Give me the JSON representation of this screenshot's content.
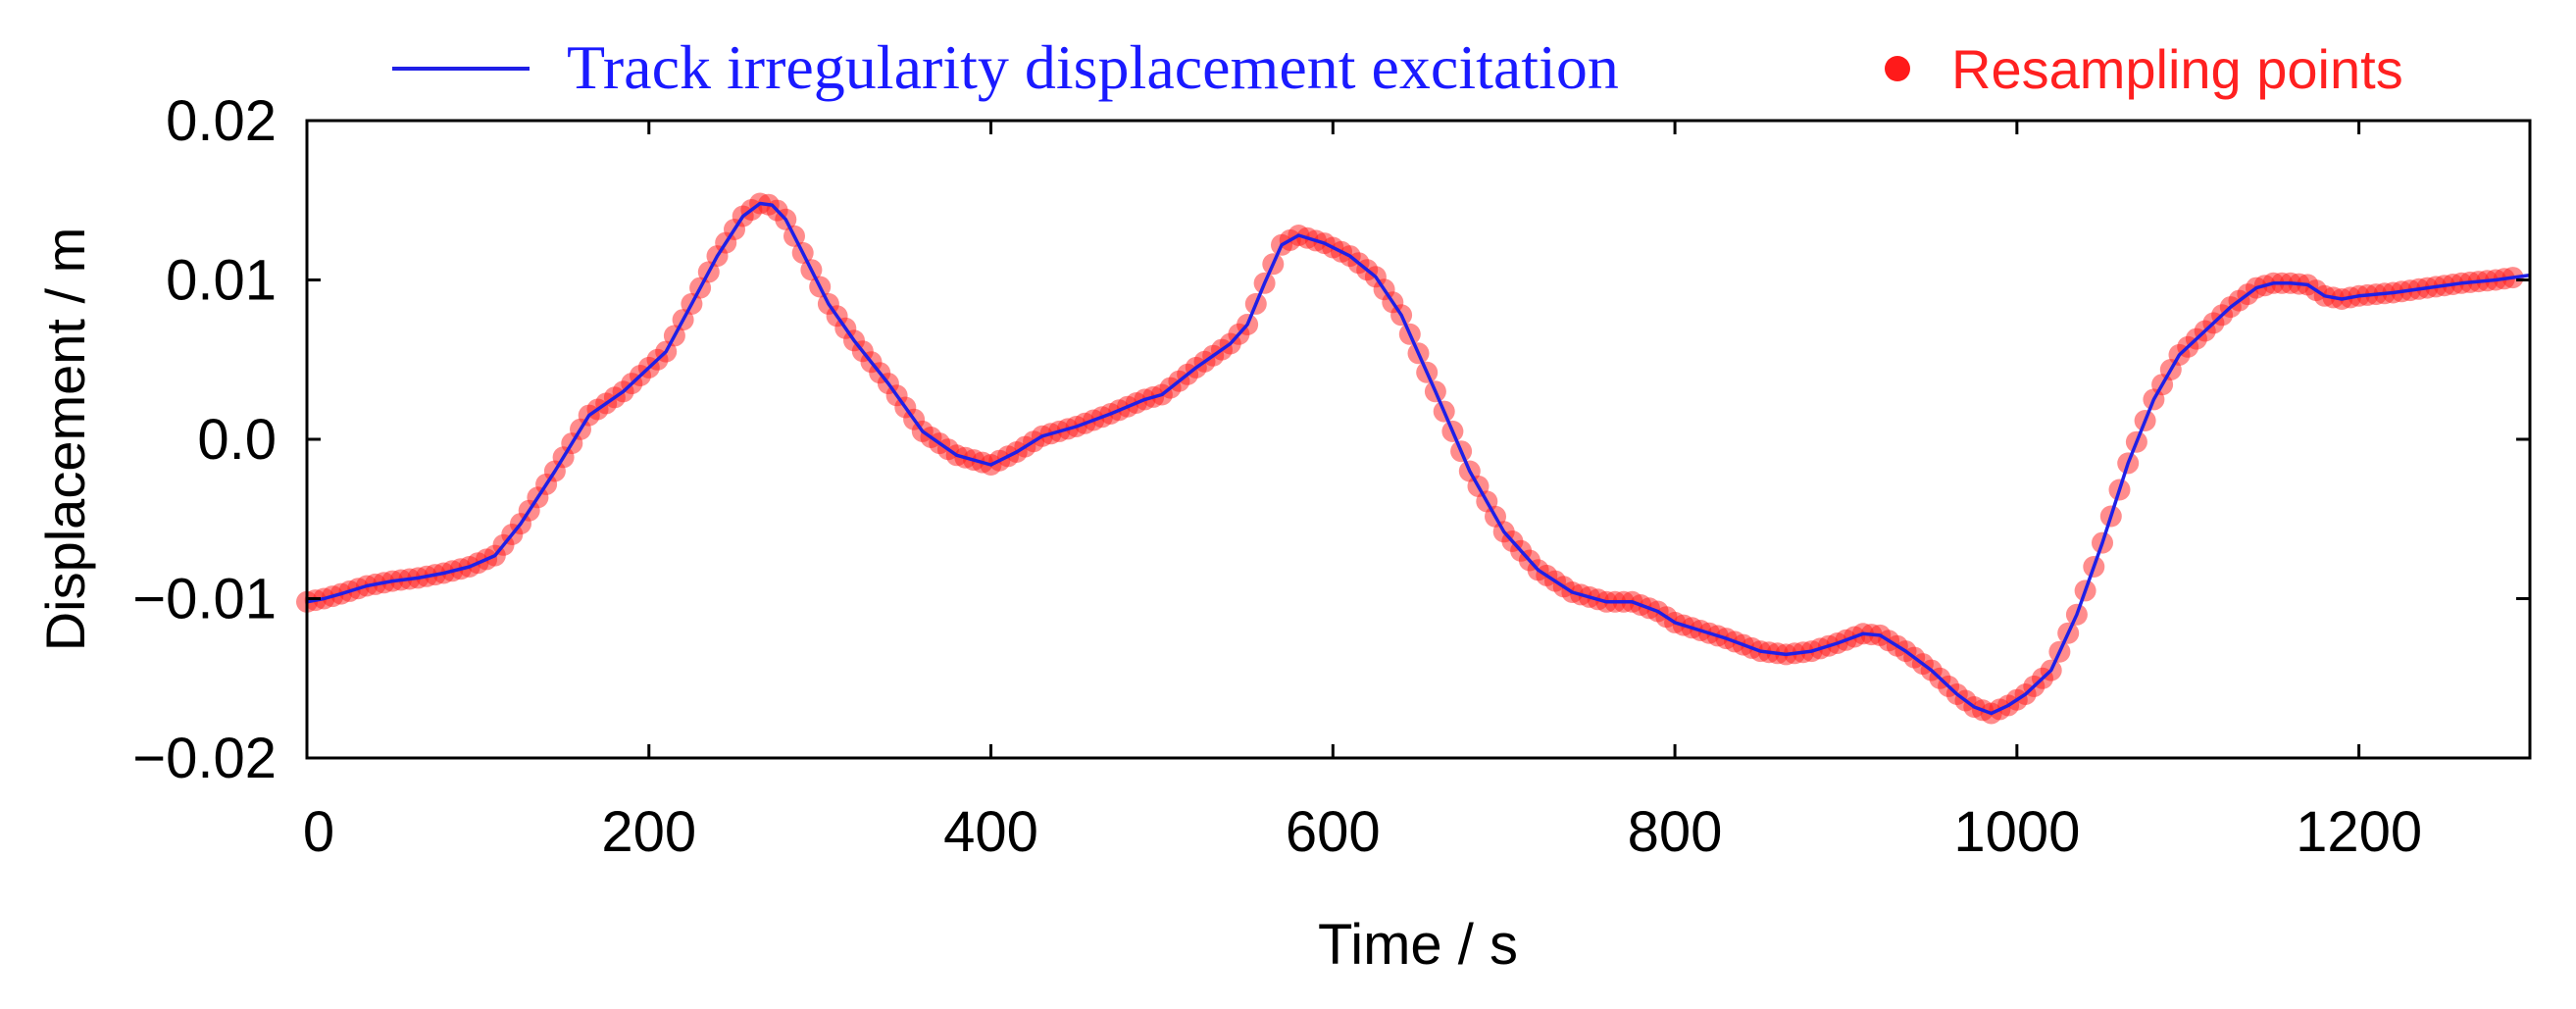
{
  "chart_data": {
    "type": "line",
    "title": "",
    "xlabel": "Time / s",
    "ylabel": "Displacement / m",
    "xlim": [
      0,
      1300
    ],
    "ylim": [
      -0.02,
      0.02
    ],
    "xticks": [
      0,
      200,
      400,
      600,
      800,
      1000,
      1200
    ],
    "yticks": [
      0.02,
      0.01,
      0.0,
      -0.01,
      -0.02
    ],
    "xtick_labels": [
      "0",
      "200",
      "400",
      "600",
      "800",
      "1000",
      "1200"
    ],
    "ytick_labels": [
      "0.02",
      "0.01",
      "0.0",
      "−0.01",
      "−0.02"
    ],
    "grid": false,
    "legend_position": "top",
    "colors": {
      "line": "#1f1fe6",
      "points": "#ff1a1a",
      "legend_line_text": "#1a1aff",
      "legend_points_text": "#ff2020"
    },
    "series": [
      {
        "name": "Track irregularity displacement excitation",
        "kind": "line",
        "x": [
          0,
          10,
          20,
          35,
          50,
          65,
          80,
          95,
          110,
          125,
          145,
          165,
          185,
          200,
          210,
          225,
          240,
          255,
          265,
          272,
          280,
          290,
          305,
          320,
          340,
          360,
          380,
          400,
          415,
          430,
          450,
          470,
          490,
          500,
          520,
          540,
          550,
          560,
          570,
          580,
          595,
          610,
          625,
          640,
          660,
          680,
          700,
          720,
          740,
          760,
          775,
          790,
          800,
          815,
          830,
          850,
          865,
          880,
          895,
          910,
          920,
          935,
          950,
          965,
          975,
          985,
          995,
          1005,
          1020,
          1035,
          1050,
          1065,
          1080,
          1095,
          1110,
          1125,
          1140,
          1150,
          1160,
          1170,
          1180,
          1190,
          1200,
          1220,
          1240,
          1260,
          1280,
          1300
        ],
        "y": [
          -0.0102,
          -0.01,
          -0.0097,
          -0.0092,
          -0.0089,
          -0.0087,
          -0.0084,
          -0.008,
          -0.0073,
          -0.0053,
          -0.002,
          0.0015,
          0.003,
          0.0045,
          0.0055,
          0.0085,
          0.0115,
          0.014,
          0.0148,
          0.0147,
          0.0138,
          0.0117,
          0.0085,
          0.0062,
          0.0035,
          0.0005,
          -0.001,
          -0.0016,
          -0.0008,
          0.0002,
          0.0008,
          0.0016,
          0.0025,
          0.0028,
          0.0045,
          0.006,
          0.0072,
          0.0098,
          0.0122,
          0.0128,
          0.0123,
          0.0115,
          0.0102,
          0.0078,
          0.003,
          -0.002,
          -0.0058,
          -0.0082,
          -0.0096,
          -0.0102,
          -0.0102,
          -0.0108,
          -0.0115,
          -0.012,
          -0.0125,
          -0.0133,
          -0.0135,
          -0.0133,
          -0.0128,
          -0.0122,
          -0.0123,
          -0.0133,
          -0.0145,
          -0.016,
          -0.0168,
          -0.0172,
          -0.0167,
          -0.016,
          -0.0145,
          -0.011,
          -0.0065,
          -0.0015,
          0.0025,
          0.0053,
          0.0068,
          0.0083,
          0.0095,
          0.0098,
          0.0098,
          0.0097,
          0.009,
          0.0088,
          0.009,
          0.0092,
          0.0095,
          0.0098,
          0.01,
          0.0103
        ]
      },
      {
        "name": "Resampling points",
        "kind": "scatter",
        "step": 5,
        "x_range": [
          0,
          1290
        ]
      }
    ]
  }
}
